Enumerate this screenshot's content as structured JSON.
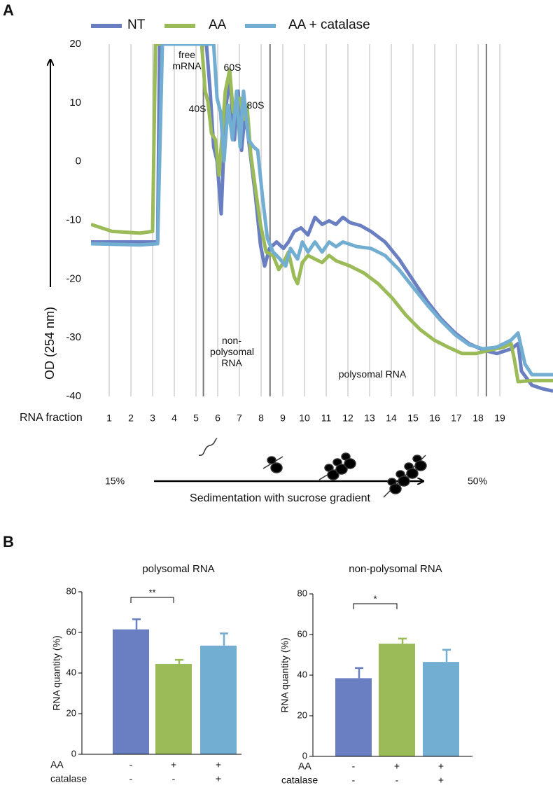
{
  "chart_data": [
    {
      "type": "line",
      "panel": "A",
      "ylabel": "OD (254 nm)",
      "xlabel": "RNA fraction",
      "xlim": [
        0.16,
        21.45
      ],
      "ylim": [
        -40,
        20
      ],
      "xticks": [
        1,
        2,
        3,
        4,
        5,
        6,
        7,
        8,
        9,
        10,
        11,
        12,
        13,
        14,
        15,
        16,
        17,
        18,
        19
      ],
      "yticks": [
        -40,
        -30,
        -20,
        -10,
        0,
        10,
        20
      ],
      "grid": true,
      "dividers": [
        5.34,
        8.41,
        18.38
      ],
      "annotations": [
        "free mRNA",
        "60S",
        "40S",
        "80S",
        "non-polysomal RNA",
        "polysomal RNA"
      ],
      "gradient": {
        "low": "15%",
        "high": "50%",
        "label": "Sedimentation with sucrose gradient"
      },
      "series": [
        {
          "name": "NT",
          "color": "#6a7fc1",
          "x": [
            0.16,
            3.23,
            3.32,
            5.48,
            5.65,
            5.81,
            5.97,
            6.16,
            6.35,
            6.55,
            6.77,
            6.94,
            7.1,
            7.26,
            7.42,
            7.58,
            7.74,
            7.97,
            8.16,
            8.39,
            8.71,
            9.03,
            9.26,
            9.52,
            9.84,
            10.16,
            10.48,
            10.81,
            11.13,
            11.45,
            11.77,
            12.1,
            12.58,
            13.06,
            13.71,
            14.35,
            15.0,
            15.65,
            16.29,
            16.94,
            17.58,
            18.23,
            18.87,
            19.52,
            19.84,
            20.0,
            20.48,
            20.97,
            21.45
          ],
          "values": [
            -13.7,
            -13.7,
            20,
            20,
            12.0,
            2.5,
            0.1,
            -8.9,
            8.4,
            14.4,
            3.7,
            12.0,
            1.9,
            8.4,
            3.7,
            -1.1,
            -5.9,
            -14.2,
            -17.8,
            -14.8,
            -13.7,
            -14.8,
            -13.7,
            -11.9,
            -11.3,
            -12.5,
            -9.5,
            -10.7,
            -10.1,
            -10.7,
            -9.5,
            -10.4,
            -10.9,
            -11.9,
            -13.7,
            -16.6,
            -20.2,
            -23.8,
            -26.8,
            -29.2,
            -31.0,
            -32.1,
            -32.7,
            -31.9,
            -31.0,
            -35.7,
            -38.1,
            -38.7,
            -39.1
          ]
        },
        {
          "name": "AA",
          "color": "#9bbb59",
          "x": [
            0.16,
            1.13,
            2.42,
            3.0,
            3.13,
            5.26,
            5.42,
            5.55,
            5.71,
            5.9,
            6.06,
            6.23,
            6.35,
            6.55,
            6.71,
            6.87,
            7.03,
            7.19,
            7.35,
            7.52,
            7.74,
            7.97,
            8.23,
            8.55,
            8.81,
            9.03,
            9.26,
            9.52,
            9.68,
            9.9,
            10.16,
            10.48,
            10.81,
            11.13,
            11.45,
            12.1,
            12.74,
            13.39,
            14.03,
            14.68,
            15.32,
            15.97,
            16.61,
            17.26,
            17.9,
            18.55,
            19.19,
            19.52,
            19.68,
            19.84,
            20.48,
            21.45
          ],
          "values": [
            -10.7,
            -11.9,
            -12.2,
            -11.9,
            20,
            20,
            12.0,
            10.2,
            4.8,
            3.7,
            -2.3,
            6.0,
            12.0,
            15.6,
            8.4,
            9.6,
            10.8,
            7.2,
            9.6,
            1.3,
            -4.7,
            -10.7,
            -15.4,
            -16.0,
            -18.4,
            -17.2,
            -15.4,
            -19.6,
            -20.8,
            -17.2,
            -16.0,
            -16.6,
            -17.2,
            -16.0,
            -16.9,
            -17.8,
            -19.0,
            -20.8,
            -23.2,
            -26.2,
            -28.6,
            -30.4,
            -31.6,
            -32.7,
            -32.7,
            -32.1,
            -31.6,
            -31.0,
            -33.9,
            -37.5,
            -37.3,
            -37.3
          ]
        },
        {
          "name": "AA + catalase",
          "color": "#72add2",
          "x": [
            0.16,
            2.42,
            3.23,
            3.45,
            5.81,
            5.97,
            6.13,
            6.29,
            6.48,
            6.68,
            6.87,
            7.03,
            7.19,
            7.42,
            7.65,
            7.84,
            8.06,
            8.29,
            8.55,
            8.87,
            9.13,
            9.35,
            9.68,
            9.9,
            10.16,
            10.48,
            10.81,
            11.13,
            11.45,
            11.77,
            12.42,
            13.06,
            13.71,
            14.35,
            15.0,
            15.65,
            16.29,
            16.94,
            17.58,
            18.23,
            18.87,
            19.52,
            19.84,
            20.16,
            20.48,
            21.45
          ],
          "values": [
            -14.0,
            -14.2,
            -14.0,
            20,
            20,
            10.8,
            8.4,
            0.1,
            9.6,
            3.7,
            12.0,
            2.5,
            12.0,
            3.7,
            2.5,
            1.9,
            -5.9,
            -13.1,
            -15.4,
            -16.6,
            -17.8,
            -14.8,
            -16.6,
            -13.7,
            -15.4,
            -13.7,
            -15.4,
            -13.7,
            -14.5,
            -13.7,
            -14.5,
            -14.8,
            -16.0,
            -18.4,
            -21.4,
            -24.4,
            -27.1,
            -29.5,
            -31.2,
            -31.9,
            -31.6,
            -30.4,
            -29.2,
            -34.5,
            -36.3,
            -36.3
          ]
        }
      ]
    },
    {
      "type": "bar",
      "panel": "B",
      "title": "polysomal RNA",
      "ylabel": "RNA quantity (%)",
      "ylim": [
        0,
        80
      ],
      "yticks": [
        0,
        20,
        40,
        60,
        80
      ],
      "values": [
        61.5,
        44.5,
        53.5
      ],
      "errors": [
        5,
        2,
        6
      ],
      "colors": [
        "#6a7fc1",
        "#9bbb59",
        "#72add2"
      ],
      "conditions": [
        {
          "name": "AA",
          "labels": [
            "-",
            "+",
            "+"
          ]
        },
        {
          "name": "catalase",
          "labels": [
            "-",
            "-",
            "+"
          ]
        }
      ],
      "significance": "**"
    },
    {
      "type": "bar",
      "title": "non-polysomal RNA",
      "ylabel": "RNA quantity (%)",
      "ylim": [
        0,
        80
      ],
      "yticks": [
        0,
        20,
        40,
        60,
        80
      ],
      "values": [
        38.5,
        55.5,
        46.5
      ],
      "errors": [
        5,
        2.5,
        6
      ],
      "colors": [
        "#6a7fc1",
        "#9bbb59",
        "#72add2"
      ],
      "conditions": [
        {
          "name": "AA",
          "labels": [
            "-",
            "+",
            "+"
          ]
        },
        {
          "name": "catalase",
          "labels": [
            "-",
            "-",
            "+"
          ]
        }
      ],
      "significance": "*"
    }
  ]
}
